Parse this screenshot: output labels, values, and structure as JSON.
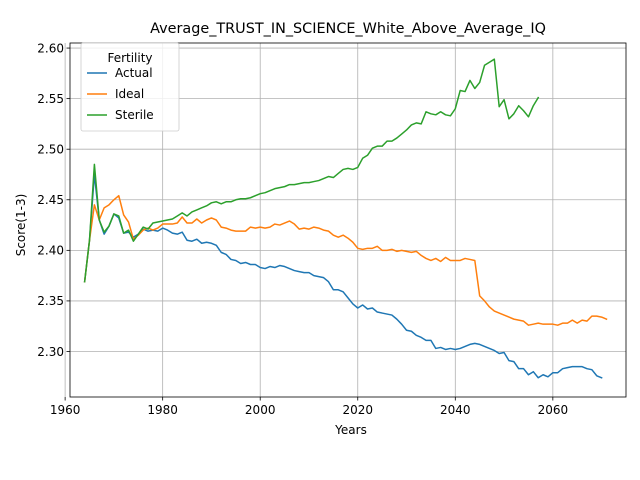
{
  "chart_data": {
    "type": "line",
    "title": "Average_TRUST_IN_SCIENCE_White_Above_Average_IQ",
    "xlabel": "Years",
    "ylabel": "Score(1-3)",
    "xlim": [
      1961,
      2075
    ],
    "ylim": [
      2.255,
      2.605
    ],
    "xticks": [
      1960,
      1980,
      2000,
      2020,
      2040,
      2060
    ],
    "yticks": [
      2.3,
      2.35,
      2.4,
      2.45,
      2.5,
      2.55,
      2.6
    ],
    "grid": true,
    "legend": {
      "title": "Fertility",
      "placement": "upper-left"
    },
    "series": [
      {
        "name": "Actual",
        "color": "#1f77b4",
        "points": [
          [
            1964,
            2.369
          ],
          [
            1965,
            2.41
          ],
          [
            1966,
            2.475
          ],
          [
            1967,
            2.43
          ],
          [
            1968,
            2.416
          ],
          [
            1969,
            2.424
          ],
          [
            1970,
            2.436
          ],
          [
            1971,
            2.432
          ],
          [
            1972,
            2.417
          ],
          [
            1973,
            2.418
          ],
          [
            1974,
            2.413
          ],
          [
            1975,
            2.416
          ],
          [
            1976,
            2.421
          ],
          [
            1977,
            2.419
          ],
          [
            1978,
            2.42
          ],
          [
            1979,
            2.419
          ],
          [
            1980,
            2.422
          ],
          [
            1981,
            2.42
          ],
          [
            1982,
            2.417
          ],
          [
            1983,
            2.416
          ],
          [
            1984,
            2.418
          ],
          [
            1985,
            2.41
          ],
          [
            1986,
            2.409
          ],
          [
            1987,
            2.411
          ],
          [
            1988,
            2.407
          ],
          [
            1989,
            2.408
          ],
          [
            1990,
            2.407
          ],
          [
            1991,
            2.405
          ],
          [
            1992,
            2.398
          ],
          [
            1993,
            2.396
          ],
          [
            1994,
            2.391
          ],
          [
            1995,
            2.39
          ],
          [
            1996,
            2.387
          ],
          [
            1997,
            2.388
          ],
          [
            1998,
            2.386
          ],
          [
            1999,
            2.386
          ],
          [
            2000,
            2.383
          ],
          [
            2001,
            2.382
          ],
          [
            2002,
            2.384
          ],
          [
            2003,
            2.383
          ],
          [
            2004,
            2.385
          ],
          [
            2005,
            2.384
          ],
          [
            2006,
            2.382
          ],
          [
            2007,
            2.38
          ],
          [
            2008,
            2.379
          ],
          [
            2009,
            2.378
          ],
          [
            2010,
            2.378
          ],
          [
            2011,
            2.375
          ],
          [
            2012,
            2.374
          ],
          [
            2013,
            2.373
          ],
          [
            2014,
            2.369
          ],
          [
            2015,
            2.361
          ],
          [
            2016,
            2.361
          ],
          [
            2017,
            2.359
          ],
          [
            2018,
            2.353
          ],
          [
            2019,
            2.347
          ],
          [
            2020,
            2.343
          ],
          [
            2021,
            2.346
          ],
          [
            2022,
            2.342
          ],
          [
            2023,
            2.343
          ],
          [
            2024,
            2.339
          ],
          [
            2025,
            2.338
          ],
          [
            2026,
            2.337
          ],
          [
            2027,
            2.336
          ],
          [
            2028,
            2.332
          ],
          [
            2029,
            2.327
          ],
          [
            2030,
            2.321
          ],
          [
            2031,
            2.32
          ],
          [
            2032,
            2.316
          ],
          [
            2033,
            2.314
          ],
          [
            2034,
            2.311
          ],
          [
            2035,
            2.311
          ],
          [
            2036,
            2.303
          ],
          [
            2037,
            2.304
          ],
          [
            2038,
            2.302
          ],
          [
            2039,
            2.303
          ],
          [
            2040,
            2.302
          ],
          [
            2041,
            2.303
          ],
          [
            2042,
            2.305
          ],
          [
            2043,
            2.307
          ],
          [
            2044,
            2.308
          ],
          [
            2045,
            2.307
          ],
          [
            2046,
            2.305
          ],
          [
            2047,
            2.303
          ],
          [
            2048,
            2.301
          ],
          [
            2049,
            2.298
          ],
          [
            2050,
            2.299
          ],
          [
            2051,
            2.291
          ],
          [
            2052,
            2.29
          ],
          [
            2053,
            2.283
          ],
          [
            2054,
            2.283
          ],
          [
            2055,
            2.277
          ],
          [
            2056,
            2.28
          ],
          [
            2057,
            2.274
          ],
          [
            2058,
            2.277
          ],
          [
            2059,
            2.275
          ],
          [
            2060,
            2.279
          ],
          [
            2061,
            2.279
          ],
          [
            2062,
            2.283
          ],
          [
            2063,
            2.284
          ],
          [
            2064,
            2.285
          ],
          [
            2065,
            2.285
          ],
          [
            2066,
            2.285
          ],
          [
            2067,
            2.283
          ],
          [
            2068,
            2.282
          ],
          [
            2069,
            2.276
          ],
          [
            2070,
            2.274
          ]
        ]
      },
      {
        "name": "Ideal",
        "color": "#ff7f0e",
        "points": [
          [
            1964,
            2.369
          ],
          [
            1965,
            2.41
          ],
          [
            1966,
            2.445
          ],
          [
            1967,
            2.43
          ],
          [
            1968,
            2.442
          ],
          [
            1969,
            2.445
          ],
          [
            1970,
            2.45
          ],
          [
            1971,
            2.454
          ],
          [
            1972,
            2.435
          ],
          [
            1973,
            2.428
          ],
          [
            1974,
            2.411
          ],
          [
            1975,
            2.415
          ],
          [
            1976,
            2.42
          ],
          [
            1977,
            2.422
          ],
          [
            1978,
            2.42
          ],
          [
            1979,
            2.422
          ],
          [
            1980,
            2.426
          ],
          [
            1981,
            2.426
          ],
          [
            1982,
            2.426
          ],
          [
            1983,
            2.427
          ],
          [
            1984,
            2.433
          ],
          [
            1985,
            2.427
          ],
          [
            1986,
            2.427
          ],
          [
            1987,
            2.431
          ],
          [
            1988,
            2.427
          ],
          [
            1989,
            2.43
          ],
          [
            1990,
            2.432
          ],
          [
            1991,
            2.43
          ],
          [
            1992,
            2.423
          ],
          [
            1993,
            2.422
          ],
          [
            1994,
            2.42
          ],
          [
            1995,
            2.419
          ],
          [
            1996,
            2.419
          ],
          [
            1997,
            2.419
          ],
          [
            1998,
            2.423
          ],
          [
            1999,
            2.422
          ],
          [
            2000,
            2.423
          ],
          [
            2001,
            2.422
          ],
          [
            2002,
            2.423
          ],
          [
            2003,
            2.426
          ],
          [
            2004,
            2.425
          ],
          [
            2005,
            2.427
          ],
          [
            2006,
            2.429
          ],
          [
            2007,
            2.426
          ],
          [
            2008,
            2.421
          ],
          [
            2009,
            2.422
          ],
          [
            2010,
            2.421
          ],
          [
            2011,
            2.423
          ],
          [
            2012,
            2.422
          ],
          [
            2013,
            2.42
          ],
          [
            2014,
            2.419
          ],
          [
            2015,
            2.415
          ],
          [
            2016,
            2.413
          ],
          [
            2017,
            2.415
          ],
          [
            2018,
            2.412
          ],
          [
            2019,
            2.408
          ],
          [
            2020,
            2.402
          ],
          [
            2021,
            2.401
          ],
          [
            2022,
            2.402
          ],
          [
            2023,
            2.402
          ],
          [
            2024,
            2.404
          ],
          [
            2025,
            2.4
          ],
          [
            2026,
            2.4
          ],
          [
            2027,
            2.401
          ],
          [
            2028,
            2.399
          ],
          [
            2029,
            2.4
          ],
          [
            2030,
            2.399
          ],
          [
            2031,
            2.398
          ],
          [
            2032,
            2.399
          ],
          [
            2033,
            2.395
          ],
          [
            2034,
            2.392
          ],
          [
            2035,
            2.39
          ],
          [
            2036,
            2.392
          ],
          [
            2037,
            2.389
          ],
          [
            2038,
            2.393
          ],
          [
            2039,
            2.39
          ],
          [
            2040,
            2.39
          ],
          [
            2041,
            2.39
          ],
          [
            2042,
            2.392
          ],
          [
            2043,
            2.391
          ],
          [
            2044,
            2.39
          ],
          [
            2045,
            2.355
          ],
          [
            2046,
            2.35
          ],
          [
            2047,
            2.344
          ],
          [
            2048,
            2.34
          ],
          [
            2049,
            2.338
          ],
          [
            2050,
            2.336
          ],
          [
            2051,
            2.334
          ],
          [
            2052,
            2.332
          ],
          [
            2053,
            2.331
          ],
          [
            2054,
            2.33
          ],
          [
            2055,
            2.326
          ],
          [
            2056,
            2.327
          ],
          [
            2057,
            2.328
          ],
          [
            2058,
            2.327
          ],
          [
            2059,
            2.327
          ],
          [
            2060,
            2.327
          ],
          [
            2061,
            2.326
          ],
          [
            2062,
            2.328
          ],
          [
            2063,
            2.328
          ],
          [
            2064,
            2.331
          ],
          [
            2065,
            2.328
          ],
          [
            2066,
            2.331
          ],
          [
            2067,
            2.33
          ],
          [
            2068,
            2.335
          ],
          [
            2069,
            2.335
          ],
          [
            2070,
            2.334
          ],
          [
            2071,
            2.332
          ]
        ]
      },
      {
        "name": "Sterile",
        "color": "#2ca02c",
        "points": [
          [
            1964,
            2.369
          ],
          [
            1965,
            2.41
          ],
          [
            1966,
            2.485
          ],
          [
            1967,
            2.43
          ],
          [
            1968,
            2.418
          ],
          [
            1969,
            2.424
          ],
          [
            1970,
            2.436
          ],
          [
            1971,
            2.434
          ],
          [
            1972,
            2.417
          ],
          [
            1973,
            2.42
          ],
          [
            1974,
            2.409
          ],
          [
            1975,
            2.416
          ],
          [
            1976,
            2.423
          ],
          [
            1977,
            2.421
          ],
          [
            1978,
            2.427
          ],
          [
            1979,
            2.428
          ],
          [
            1980,
            2.429
          ],
          [
            1981,
            2.43
          ],
          [
            1982,
            2.431
          ],
          [
            1983,
            2.434
          ],
          [
            1984,
            2.437
          ],
          [
            1985,
            2.434
          ],
          [
            1986,
            2.438
          ],
          [
            1987,
            2.44
          ],
          [
            1988,
            2.442
          ],
          [
            1989,
            2.444
          ],
          [
            1990,
            2.447
          ],
          [
            1991,
            2.448
          ],
          [
            1992,
            2.446
          ],
          [
            1993,
            2.448
          ],
          [
            1994,
            2.448
          ],
          [
            1995,
            2.45
          ],
          [
            1996,
            2.451
          ],
          [
            1997,
            2.451
          ],
          [
            1998,
            2.452
          ],
          [
            1999,
            2.454
          ],
          [
            2000,
            2.456
          ],
          [
            2001,
            2.457
          ],
          [
            2002,
            2.459
          ],
          [
            2003,
            2.461
          ],
          [
            2004,
            2.462
          ],
          [
            2005,
            2.463
          ],
          [
            2006,
            2.465
          ],
          [
            2007,
            2.465
          ],
          [
            2008,
            2.466
          ],
          [
            2009,
            2.467
          ],
          [
            2010,
            2.467
          ],
          [
            2011,
            2.468
          ],
          [
            2012,
            2.469
          ],
          [
            2013,
            2.471
          ],
          [
            2014,
            2.473
          ],
          [
            2015,
            2.472
          ],
          [
            2016,
            2.476
          ],
          [
            2017,
            2.48
          ],
          [
            2018,
            2.481
          ],
          [
            2019,
            2.48
          ],
          [
            2020,
            2.482
          ],
          [
            2021,
            2.491
          ],
          [
            2022,
            2.494
          ],
          [
            2023,
            2.501
          ],
          [
            2024,
            2.503
          ],
          [
            2025,
            2.503
          ],
          [
            2026,
            2.508
          ],
          [
            2027,
            2.508
          ],
          [
            2028,
            2.511
          ],
          [
            2029,
            2.515
          ],
          [
            2030,
            2.519
          ],
          [
            2031,
            2.524
          ],
          [
            2032,
            2.526
          ],
          [
            2033,
            2.525
          ],
          [
            2034,
            2.537
          ],
          [
            2035,
            2.535
          ],
          [
            2036,
            2.534
          ],
          [
            2037,
            2.537
          ],
          [
            2038,
            2.534
          ],
          [
            2039,
            2.533
          ],
          [
            2040,
            2.54
          ],
          [
            2041,
            2.558
          ],
          [
            2042,
            2.557
          ],
          [
            2043,
            2.568
          ],
          [
            2044,
            2.56
          ],
          [
            2045,
            2.566
          ],
          [
            2046,
            2.583
          ],
          [
            2047,
            2.586
          ],
          [
            2048,
            2.589
          ],
          [
            2049,
            2.542
          ],
          [
            2050,
            2.549
          ],
          [
            2051,
            2.53
          ],
          [
            2052,
            2.535
          ],
          [
            2053,
            2.543
          ],
          [
            2054,
            2.538
          ],
          [
            2055,
            2.532
          ],
          [
            2056,
            2.543
          ],
          [
            2057,
            2.551
          ]
        ]
      }
    ]
  }
}
